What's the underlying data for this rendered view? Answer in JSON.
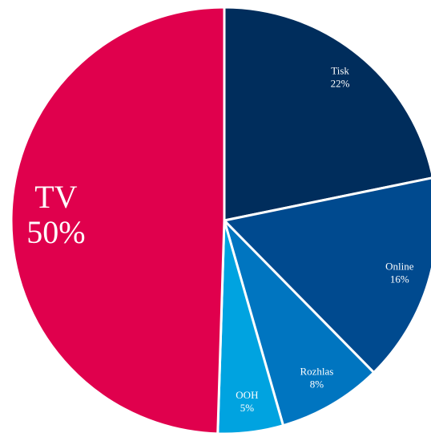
{
  "chart_data": {
    "type": "pie",
    "categories": [
      "Tisk",
      "Online",
      "Rozhlas",
      "OOH",
      "TV"
    ],
    "values": [
      22,
      16,
      8,
      5,
      50
    ],
    "value_labels": [
      "22%",
      "16%",
      "8%",
      "5%",
      "50%"
    ],
    "colors": [
      "#002d5c",
      "#004a8f",
      "#0075c0",
      "#00a3e0",
      "#e0004d"
    ]
  }
}
